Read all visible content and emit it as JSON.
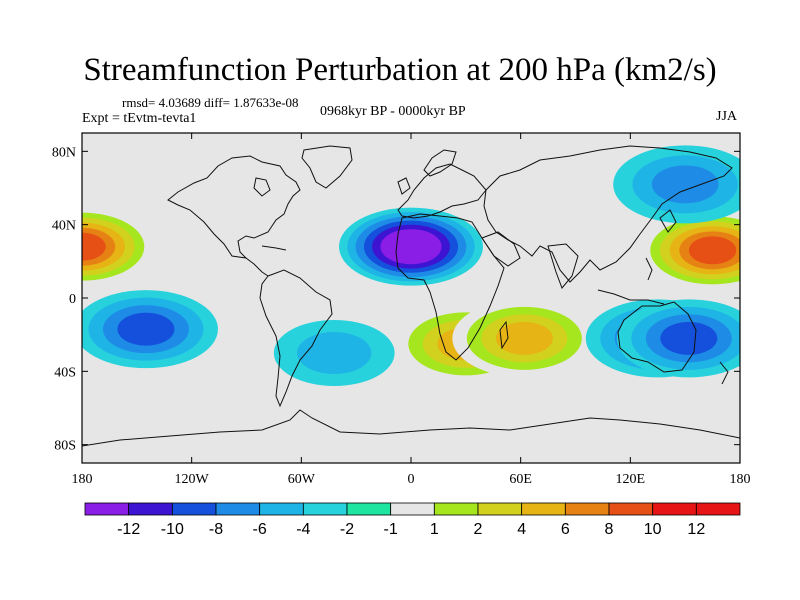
{
  "title": "Streamfunction Perturbation at 200 hPa (km2/s)",
  "stats_text": "rmsd= 4.03689 diff= 1.87633e-08",
  "experiment_text": "Expt = tEvtm-tevta1",
  "period_text": "0968kyr BP - 0000kyr BP",
  "season_text": "JJA",
  "chart_data": {
    "type": "heatmap",
    "title": "Streamfunction Perturbation at 200 hPa (km2/s)",
    "projection": "cylindrical equidistant",
    "xlim": [
      -180,
      180
    ],
    "ylim": [
      -90,
      90
    ],
    "x_ticks": [
      {
        "value": -180,
        "label": "180"
      },
      {
        "value": -120,
        "label": "120W"
      },
      {
        "value": -60,
        "label": "60W"
      },
      {
        "value": 0,
        "label": "0"
      },
      {
        "value": 60,
        "label": "60E"
      },
      {
        "value": 120,
        "label": "120E"
      },
      {
        "value": 180,
        "label": "180"
      }
    ],
    "y_ticks": [
      {
        "value": 80,
        "label": "80N"
      },
      {
        "value": 40,
        "label": "40N"
      },
      {
        "value": 0,
        "label": "0"
      },
      {
        "value": -40,
        "label": "40S"
      },
      {
        "value": -80,
        "label": "80S"
      }
    ],
    "colorbar": {
      "levels": [
        -12,
        -10,
        -8,
        -6,
        -4,
        -2,
        -1,
        1,
        2,
        4,
        6,
        8,
        10,
        12
      ],
      "labels": [
        "-12",
        "-10",
        "-8",
        "-6",
        "-4",
        "-2",
        "-1",
        "1",
        "2",
        "4",
        "6",
        "8",
        "10",
        "12"
      ],
      "colors": [
        "#8a1ee6",
        "#3c14d2",
        "#1450dc",
        "#1e8ce6",
        "#1eb4e6",
        "#28d2dc",
        "#1ee6a0",
        "#e6e6e6",
        "#a5e61e",
        "#d2d21e",
        "#e6b414",
        "#e68214",
        "#e65014",
        "#e61414"
      ]
    },
    "features": [
      {
        "name": "north-atlantic-africa-minimum",
        "lon": 0,
        "lat": 28,
        "value": -12
      },
      {
        "name": "west-pacific-maximum",
        "lon": 165,
        "lat": 26,
        "value": 11
      },
      {
        "name": "east-pacific-maximum",
        "lon": -180,
        "lat": 28,
        "value": 10
      },
      {
        "name": "southern-africa-maximum",
        "lon": 30,
        "lat": -25,
        "value": 7
      },
      {
        "name": "south-indian-ocean-maximum",
        "lon": 62,
        "lat": -22,
        "value": 7
      },
      {
        "name": "south-pacific-minimum",
        "lon": -145,
        "lat": -17,
        "value": -7
      },
      {
        "name": "australia-minimum",
        "lon": 135,
        "lat": -22,
        "value": -6
      },
      {
        "name": "mid-pacific-minimum",
        "lon": 152,
        "lat": -22,
        "value": -7
      },
      {
        "name": "siberia-minimum",
        "lon": 150,
        "lat": 62,
        "value": -5
      },
      {
        "name": "south-atlantic-minimum",
        "lon": -42,
        "lat": -30,
        "value": -3
      }
    ]
  }
}
